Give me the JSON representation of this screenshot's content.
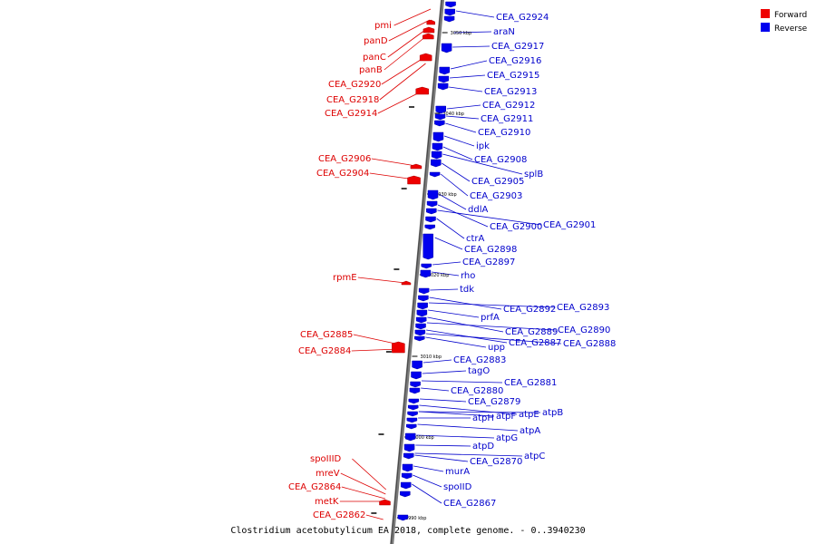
{
  "legend": {
    "forward_label": "Forward",
    "reverse_label": "Reverse",
    "forward_color": "#ee0000",
    "reverse_color": "#0000ee"
  },
  "caption": "Clostridium acetobutylicum EA 2018, complete genome. - 0..3940230",
  "ticks": [
    "3050 kbp",
    "3040 kbp",
    "3030 kbp",
    "3020 kbp",
    "3010 kbp",
    "3000 kbp",
    "2990 kbp"
  ],
  "forward_genes": [
    "pmi",
    "panD",
    "panC",
    "panB",
    "CEA_G2920",
    "CEA_G2918",
    "CEA_G2914",
    "CEA_G2906",
    "CEA_G2904",
    "rpmE",
    "CEA_G2885",
    "CEA_G2884",
    "spoIIID",
    "mreV",
    "CEA_G2864",
    "metK",
    "CEA_G2862"
  ],
  "reverse_genes": [
    "CEA_G2924",
    "araN",
    "CEA_G2917",
    "CEA_G2916",
    "CEA_G2915",
    "CEA_G2913",
    "CEA_G2912",
    "CEA_G2911",
    "CEA_G2910",
    "ipk",
    "CEA_G2908",
    "splB",
    "CEA_G2905",
    "CEA_G2903",
    "ddlA",
    "CEA_G2900",
    "CEA_G2901",
    "ctrA",
    "CEA_G2898",
    "CEA_G2897",
    "rho",
    "tdk",
    "CEA_G2892",
    "CEA_G2893",
    "prfA",
    "CEA_G2889",
    "CEA_G2890",
    "CEA_G2887",
    "CEA_G2888",
    "upp",
    "CEA_G2883",
    "tagO",
    "CEA_G2881",
    "CEA_G2880",
    "CEA_G2879",
    "atpE",
    "atpB",
    "atpF",
    "atpH",
    "atpA",
    "atpG",
    "atpD",
    "atpC",
    "CEA_G2870",
    "murA",
    "spoIID",
    "CEA_G2867"
  ]
}
